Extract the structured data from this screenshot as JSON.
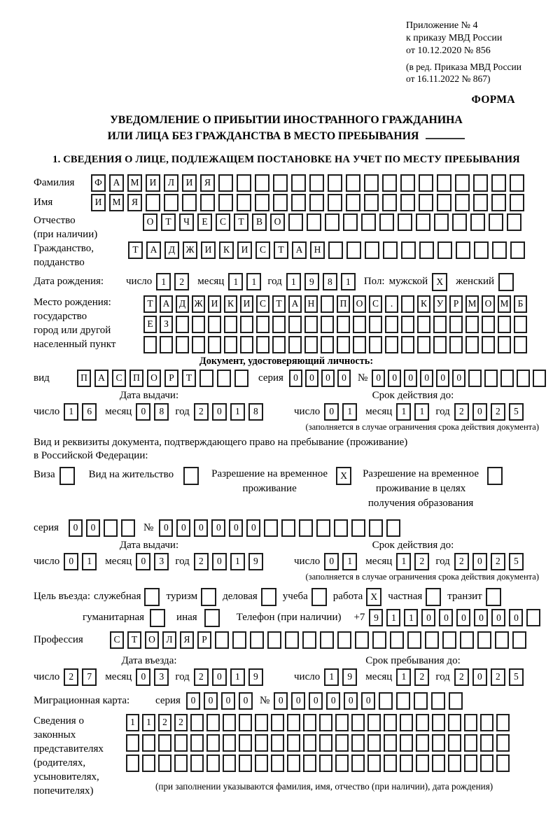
{
  "header": {
    "line1": "Приложение № 4",
    "line2": "к приказу МВД России",
    "line3": "от 10.12.2020 № 856",
    "line4": "(в ред. Приказа МВД России",
    "line5": "от 16.11.2022 № 867)",
    "forma": "ФОРМА"
  },
  "title": {
    "line1": "УВЕДОМЛЕНИЕ О ПРИБЫТИИ ИНОСТРАННОГО ГРАЖДАНИНА",
    "line2": "ИЛИ ЛИЦА БЕЗ ГРАЖДАНСТВА В МЕСТО ПРЕБЫВАНИЯ"
  },
  "section1_title": "1. СВЕДЕНИЯ О ЛИЦЕ, ПОДЛЕЖАЩЕМ ПОСТАНОВКЕ НА УЧЕТ ПО МЕСТУ ПРЕБЫВАНИЯ",
  "date_labels": {
    "day": "число",
    "month": "месяц",
    "year": "год"
  },
  "notes": {
    "validity": "(заполняется в случае ограничения срока действия документа)"
  },
  "person": {
    "surname": {
      "label": "Фамилия",
      "v": "ФАМИЛИЯ",
      "n": 24
    },
    "name": {
      "label": "Имя",
      "v": "ИМЯ",
      "n": 24
    },
    "patronymic": {
      "label1": "Отчество",
      "label2": "(при наличии)",
      "v": "ОТЧЕСТВО",
      "n": 21
    },
    "citizenship": {
      "label1": "Гражданство,",
      "label2": "подданство",
      "v": "ТАДЖИКИСТАН",
      "n": 22
    },
    "birth": {
      "label": "Дата рождения:",
      "day": {
        "v": "12",
        "n": 2
      },
      "month": {
        "v": "11",
        "n": 2
      },
      "year": {
        "v": "1981",
        "n": 4
      },
      "sex_label": "Пол:",
      "male_label": "мужской",
      "male": "X",
      "female_label": "женский",
      "female": ""
    },
    "birthplace": {
      "label1": "Место рождения:",
      "label2": "государство",
      "label3": "город или другой",
      "label4": "населенный пункт",
      "row1": {
        "v": "ТАДЖИКИСТАН ПОС. КУРМОМБ",
        "n": 24
      },
      "row2": {
        "v": "ЕЗ",
        "n": 24
      },
      "row3": {
        "v": "",
        "n": 24
      }
    }
  },
  "identity_doc": {
    "header": "Документ, удостоверяющий личность:",
    "vid_label": "вид",
    "vid": {
      "v": "ПАСПОРТ",
      "n": 10
    },
    "seriya_label": "серия",
    "seriya": {
      "v": "0000",
      "n": 4
    },
    "num_label": "№",
    "num": {
      "v": "000000",
      "n": 11
    },
    "issue_title": "Дата выдачи:",
    "issue_day": {
      "v": "16",
      "n": 2
    },
    "issue_month": {
      "v": "08",
      "n": 2
    },
    "issue_year": {
      "v": "2018",
      "n": 4
    },
    "valid_title": "Срок действия до:",
    "valid_day": {
      "v": "01",
      "n": 2
    },
    "valid_month": {
      "v": "11",
      "n": 2
    },
    "valid_year": {
      "v": "2025",
      "n": 4
    }
  },
  "residence": {
    "text1": "Вид и реквизиты документа, подтверждающего право на пребывание (проживание)",
    "text2": "в Российской Федерации:",
    "visa_label": "Виза",
    "visa": "",
    "permit_label": "Вид на жительство",
    "permit": "",
    "rvp_label1": "Разрешение на временное",
    "rvp_label2": "проживание",
    "rvp": "X",
    "rvp_edu_label1": "Разрешение на временное",
    "rvp_edu_label2": "проживание в целях",
    "rvp_edu_label3": "получения образования",
    "rvp_edu": "",
    "seriya_label": "серия",
    "seriya": {
      "v": "00",
      "n": 4
    },
    "num_label": "№",
    "num": {
      "v": "000000",
      "n": 14
    },
    "issue_title": "Дата выдачи:",
    "issue_day": {
      "v": "01",
      "n": 2
    },
    "issue_month": {
      "v": "03",
      "n": 2
    },
    "issue_year": {
      "v": "2019",
      "n": 4
    },
    "valid_title": "Срок действия до:",
    "valid_day": {
      "v": "01",
      "n": 2
    },
    "valid_month": {
      "v": "12",
      "n": 2
    },
    "valid_year": {
      "v": "2025",
      "n": 4
    }
  },
  "purpose": {
    "label": "Цель въезда:",
    "options": {
      "sluzhebnaya": {
        "label": "служебная",
        "v": ""
      },
      "turizm": {
        "label": "туризм",
        "v": ""
      },
      "delovaya": {
        "label": "деловая",
        "v": ""
      },
      "ucheba": {
        "label": "учеба",
        "v": ""
      },
      "rabota": {
        "label": "работа",
        "v": "X"
      },
      "chastnaya": {
        "label": "частная",
        "v": ""
      },
      "tranzit": {
        "label": "транзит",
        "v": ""
      },
      "gumanitarnaya": {
        "label": "гуманитарная",
        "v": ""
      },
      "inaya": {
        "label": "иная",
        "v": ""
      }
    },
    "phone_label": "Телефон (при наличии)",
    "phone_prefix": "+7",
    "phone": {
      "v": "911000000",
      "n": 10
    }
  },
  "profession": {
    "label": "Профессия",
    "v": "СТОЛЯР",
    "n": 24
  },
  "entry": {
    "entry_title": "Дата въезда:",
    "entry_day": {
      "v": "27",
      "n": 2
    },
    "entry_month": {
      "v": "03",
      "n": 2
    },
    "entry_year": {
      "v": "2019",
      "n": 4
    },
    "stay_title": "Срок пребывания до:",
    "stay_day": {
      "v": "19",
      "n": 2
    },
    "stay_month": {
      "v": "12",
      "n": 2
    },
    "stay_year": {
      "v": "2025",
      "n": 4
    }
  },
  "migration_card": {
    "label": "Миграционная карта:",
    "seriya_label": "серия",
    "seriya": {
      "v": "0000",
      "n": 4
    },
    "num_label": "№",
    "num": {
      "v": "000000",
      "n": 11
    }
  },
  "representatives": {
    "label1": "Сведения о",
    "label2": "законных",
    "label3": "представителях",
    "label4": "(родителях,",
    "label5": "усыновителях,",
    "label6": "попечителях)",
    "row1": {
      "v": "1122",
      "n": 24
    },
    "row2": {
      "v": "",
      "n": 24
    },
    "row3": {
      "v": "",
      "n": 24
    },
    "note": "(при заполнении указываются фамилия, имя, отчество (при наличии), дата рождения)"
  }
}
